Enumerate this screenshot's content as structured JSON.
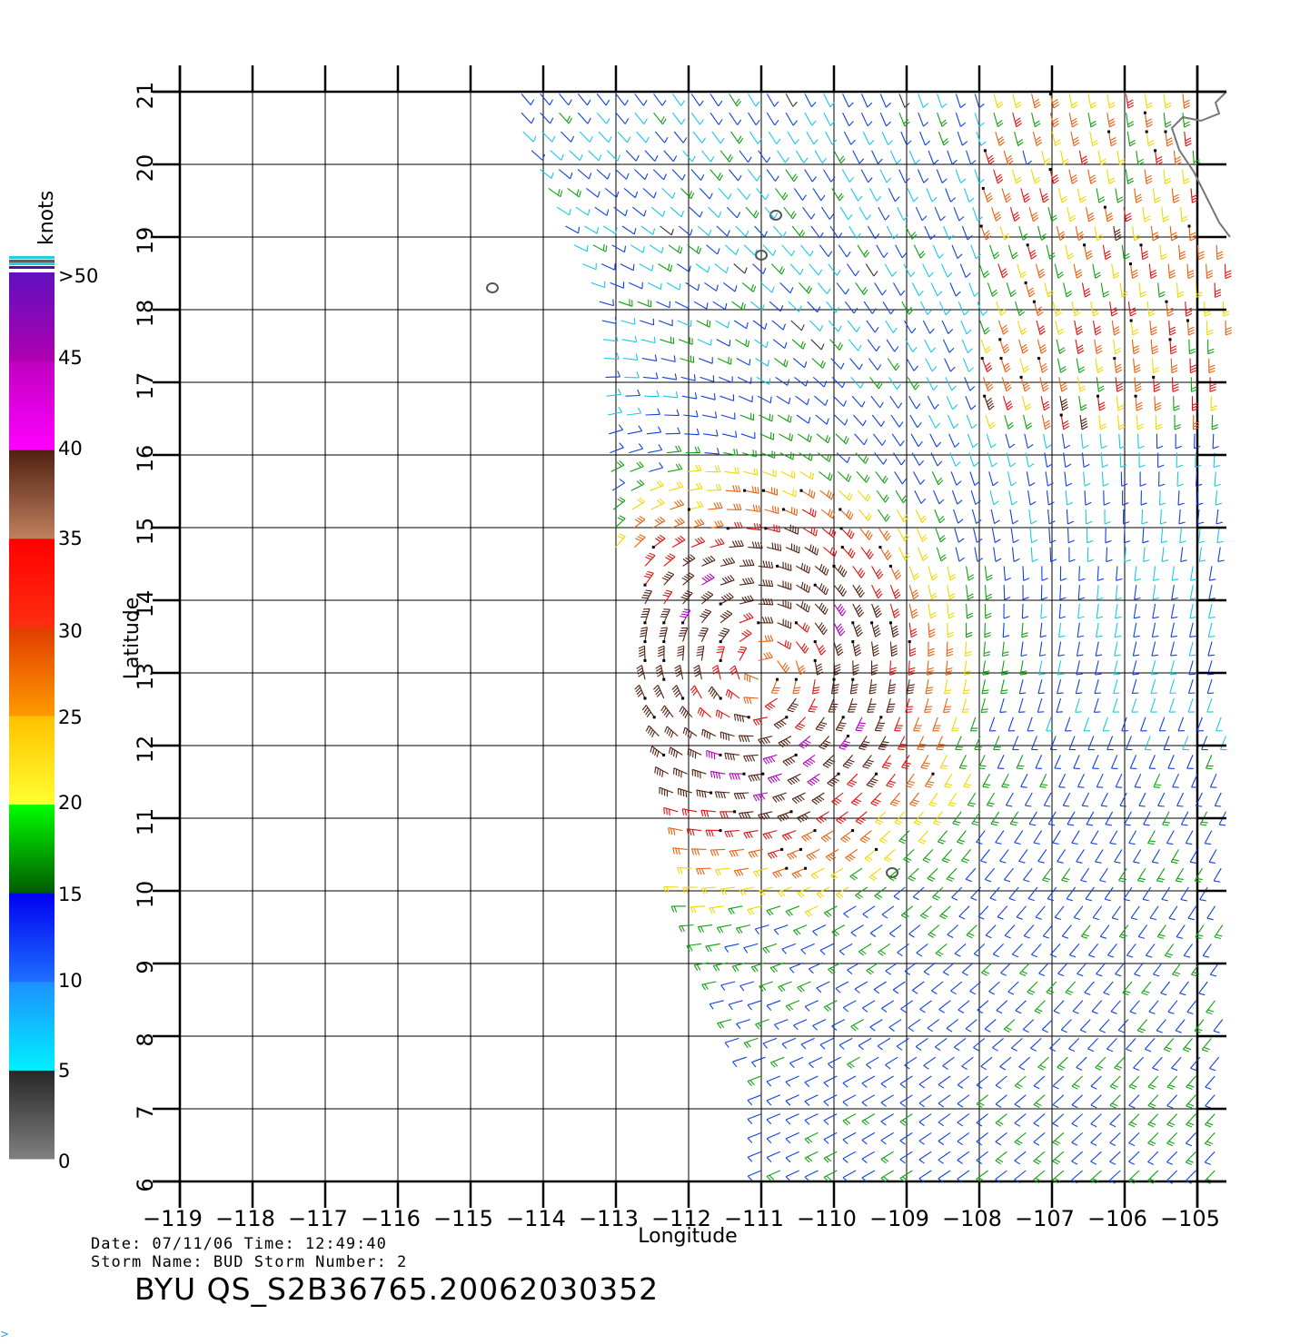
{
  "product_id": "BYU QS_S2B36765.20062030352",
  "info": {
    "date_line": "Date: 07/11/06   Time: 12:49:40",
    "storm_line": "Storm  Name: BUD   Storm  Number: 2"
  },
  "corner_mark": ">",
  "chart_data": {
    "type": "wind-barb-map",
    "xlabel": "Longitude",
    "ylabel": "Latitude",
    "xlim": [
      -119,
      -105
    ],
    "ylim": [
      6,
      21
    ],
    "x_tick_labels": [
      "−119",
      "−118",
      "−117",
      "−116",
      "−115",
      "−114",
      "−113",
      "−112",
      "−111",
      "−110",
      "−109",
      "−108",
      "−107",
      "−106",
      "−105"
    ],
    "y_tick_labels": [
      "6",
      "7",
      "8",
      "9",
      "10",
      "11",
      "12",
      "13",
      "14",
      "15",
      "16",
      "17",
      "18",
      "19",
      "20",
      "21"
    ],
    "grid": true,
    "storm_center": {
      "lon": -111,
      "lat": 13
    },
    "colorbar": {
      "title": "knots",
      "labels": [
        ">50",
        "45",
        "40",
        "35",
        "30",
        "25",
        "20",
        "15",
        "10",
        "5",
        "0"
      ],
      "bands": [
        {
          "from": 0,
          "to": 5,
          "colors": [
            "#808080",
            "#262626"
          ]
        },
        {
          "from": 5,
          "to": 10,
          "colors": [
            "#00f0ff",
            "#1e90ff"
          ]
        },
        {
          "from": 10,
          "to": 15,
          "colors": [
            "#1e6fff",
            "#0000f0"
          ]
        },
        {
          "from": 15,
          "to": 20,
          "colors": [
            "#005a00",
            "#00ff00"
          ]
        },
        {
          "from": 20,
          "to": 25,
          "colors": [
            "#ffff30",
            "#ffc000"
          ]
        },
        {
          "from": 25,
          "to": 30,
          "colors": [
            "#ff9a00",
            "#e03c00"
          ]
        },
        {
          "from": 30,
          "to": 35,
          "colors": [
            "#ff2e10",
            "#ff0000"
          ]
        },
        {
          "from": 35,
          "to": 40,
          "colors": [
            "#c08060",
            "#502010"
          ]
        },
        {
          "from": 40,
          "to": 45,
          "colors": [
            "#ff00ff",
            "#c000c0"
          ]
        },
        {
          "from": 45,
          "to": 50,
          "colors": [
            "#b000b0",
            "#6010c0"
          ]
        }
      ]
    },
    "islands": [
      {
        "lon": -114.7,
        "lat": 18.3
      },
      {
        "lon": -111.0,
        "lat": 18.75
      },
      {
        "lon": -110.8,
        "lat": 19.3
      },
      {
        "lon": -109.2,
        "lat": 10.25
      }
    ]
  }
}
